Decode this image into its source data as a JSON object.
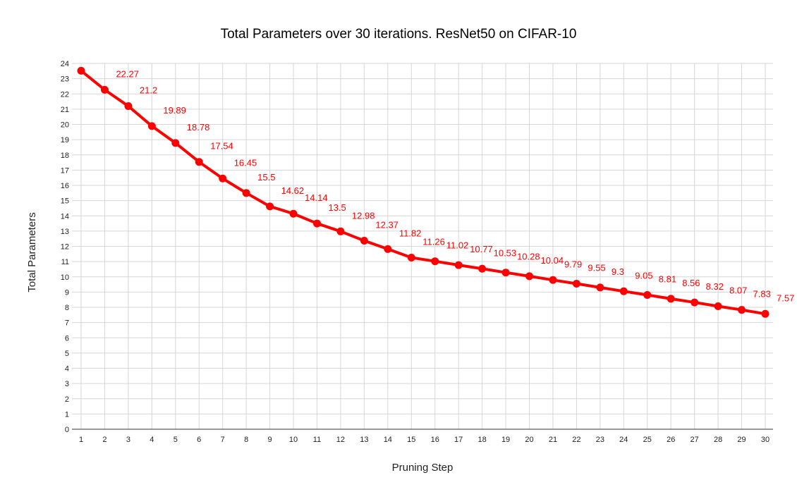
{
  "chart_data": {
    "type": "line",
    "title": "Total Parameters over 30 iterations. ResNet50 on CIFAR-10",
    "xlabel": "Pruning Step",
    "ylabel": "Total Parameters",
    "x": [
      1,
      2,
      3,
      4,
      5,
      6,
      7,
      8,
      9,
      10,
      11,
      12,
      13,
      14,
      15,
      16,
      17,
      18,
      19,
      20,
      21,
      22,
      23,
      24,
      25,
      26,
      27,
      28,
      29,
      30
    ],
    "series": [
      {
        "values": [
          23.52,
          22.27,
          21.2,
          19.89,
          18.78,
          17.54,
          16.45,
          15.5,
          14.62,
          14.14,
          13.5,
          12.98,
          12.37,
          11.82,
          11.26,
          11.02,
          10.77,
          10.53,
          10.28,
          10.04,
          9.79,
          9.55,
          9.3,
          9.05,
          8.81,
          8.56,
          8.32,
          8.07,
          7.83,
          7.57
        ],
        "data_labels": [
          "",
          "22.27",
          "21.2",
          "19.89",
          "18.78",
          "17.54",
          "16.45",
          "15.5",
          "14.62",
          "14.14",
          "13.5",
          "12.98",
          "12.37",
          "11.82",
          "11.26",
          "11.02",
          "10.77",
          "10.53",
          "10.28",
          "10.04",
          "9.79",
          "9.55",
          "9.3",
          "9.05",
          "8.81",
          "8.56",
          "8.32",
          "8.07",
          "7.83",
          "7.57"
        ],
        "color": "#ff0000"
      }
    ],
    "xlim": [
      1,
      30
    ],
    "ylim": [
      0,
      24
    ],
    "yticks": [
      0,
      1,
      2,
      3,
      4,
      5,
      6,
      7,
      8,
      9,
      10,
      11,
      12,
      13,
      14,
      15,
      16,
      17,
      18,
      19,
      20,
      21,
      22,
      23,
      24
    ],
    "grid": true,
    "legend": "none"
  }
}
